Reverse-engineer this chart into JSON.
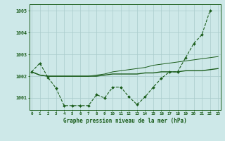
{
  "x": [
    0,
    1,
    2,
    3,
    4,
    5,
    6,
    7,
    8,
    9,
    10,
    11,
    12,
    13,
    14,
    15,
    16,
    17,
    18,
    19,
    20,
    21,
    22,
    23
  ],
  "line_zigzag": [
    1002.2,
    1002.6,
    1001.95,
    1001.45,
    1000.65,
    1000.65,
    1000.65,
    1000.65,
    1001.15,
    1001.0,
    1001.5,
    1001.5,
    1001.05,
    1000.7,
    1001.05,
    1001.5,
    1001.9,
    1002.2,
    1002.2,
    1002.85,
    1003.5,
    1003.9,
    1005.0,
    null
  ],
  "line_flat": [
    1002.2,
    1002.05,
    1002.0,
    1002.0,
    1002.0,
    1002.0,
    1002.0,
    1002.0,
    1002.0,
    1002.05,
    1002.1,
    1002.1,
    1002.1,
    1002.1,
    1002.15,
    1002.15,
    1002.2,
    1002.2,
    1002.2,
    1002.25,
    1002.25,
    1002.25,
    1002.3,
    1002.35
  ],
  "line_rise": [
    1002.2,
    1002.05,
    1002.0,
    1002.0,
    1002.0,
    1002.0,
    1002.0,
    1002.0,
    1002.05,
    1002.1,
    1002.2,
    1002.25,
    1002.3,
    1002.35,
    1002.4,
    1002.5,
    1002.55,
    1002.6,
    1002.65,
    1002.7,
    1002.75,
    1002.8,
    1002.85,
    1002.9
  ],
  "background_color": "#cde8e8",
  "grid_color": "#aacccc",
  "line_color": "#1a5c1a",
  "xlabel": "Graphe pression niveau de la mer (hPa)",
  "ylim": [
    1000.45,
    1005.3
  ],
  "yticks": [
    1001,
    1002,
    1003,
    1004,
    1005
  ],
  "xlim": [
    -0.3,
    23.3
  ]
}
